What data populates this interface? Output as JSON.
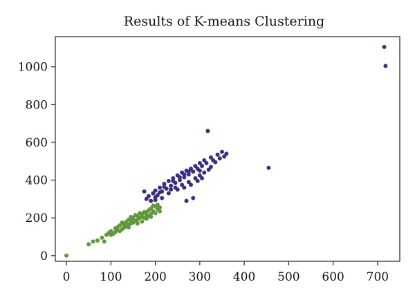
{
  "chart_data": {
    "type": "scatter",
    "title": "Results of K-means Clustering",
    "xlabel": "",
    "ylabel": "",
    "xlim": [
      -25,
      750
    ],
    "ylim": [
      -30,
      1160
    ],
    "xticks": [
      0,
      100,
      200,
      300,
      400,
      500,
      600,
      700
    ],
    "yticks": [
      0,
      200,
      400,
      600,
      800,
      1000
    ],
    "grid": false,
    "colors": {
      "cluster_1": "#3a2d85",
      "cluster_2": "#5f9a38"
    },
    "series": [
      {
        "color_key": "cluster_1",
        "points": [
          [
            715,
            1105
          ],
          [
            718,
            1005
          ],
          [
            318,
            660
          ],
          [
            455,
            465
          ],
          [
            360,
            540
          ],
          [
            350,
            550
          ],
          [
            340,
            535
          ],
          [
            325,
            520
          ],
          [
            310,
            505
          ],
          [
            300,
            490
          ],
          [
            290,
            475
          ],
          [
            280,
            460
          ],
          [
            270,
            450
          ],
          [
            260,
            440
          ],
          [
            250,
            425
          ],
          [
            240,
            410
          ],
          [
            230,
            395
          ],
          [
            220,
            380
          ],
          [
            210,
            360
          ],
          [
            200,
            345
          ],
          [
            195,
            330
          ],
          [
            185,
            315
          ],
          [
            180,
            300
          ],
          [
            190,
            290
          ],
          [
            270,
            290
          ],
          [
            285,
            305
          ],
          [
            175,
            340
          ],
          [
            205,
            320
          ],
          [
            215,
            340
          ],
          [
            225,
            355
          ],
          [
            235,
            370
          ],
          [
            245,
            385
          ],
          [
            255,
            400
          ],
          [
            265,
            415
          ],
          [
            275,
            430
          ],
          [
            285,
            445
          ],
          [
            295,
            460
          ],
          [
            305,
            475
          ],
          [
            315,
            490
          ],
          [
            330,
            505
          ],
          [
            345,
            515
          ],
          [
            355,
            525
          ],
          [
            245,
            360
          ],
          [
            260,
            375
          ],
          [
            275,
            390
          ],
          [
            290,
            410
          ],
          [
            300,
            425
          ],
          [
            310,
            440
          ],
          [
            320,
            455
          ],
          [
            230,
            330
          ],
          [
            215,
            305
          ],
          [
            200,
            295
          ],
          [
            250,
            350
          ],
          [
            265,
            360
          ],
          [
            280,
            375
          ],
          [
            295,
            395
          ],
          [
            305,
            410
          ],
          [
            220,
            365
          ],
          [
            240,
            395
          ],
          [
            255,
            415
          ],
          [
            265,
            430
          ],
          [
            275,
            445
          ],
          [
            210,
            335
          ],
          [
            235,
            350
          ],
          [
            325,
            470
          ],
          [
            335,
            495
          ],
          [
            300,
            450
          ],
          [
            200,
            310
          ]
        ]
      },
      {
        "color_key": "cluster_2",
        "points": [
          [
            0,
            0
          ],
          [
            50,
            60
          ],
          [
            60,
            75
          ],
          [
            70,
            80
          ],
          [
            80,
            95
          ],
          [
            85,
            75
          ],
          [
            90,
            110
          ],
          [
            95,
            120
          ],
          [
            100,
            130
          ],
          [
            105,
            115
          ],
          [
            110,
            145
          ],
          [
            115,
            150
          ],
          [
            120,
            160
          ],
          [
            125,
            140
          ],
          [
            130,
            170
          ],
          [
            135,
            180
          ],
          [
            140,
            165
          ],
          [
            145,
            190
          ],
          [
            150,
            200
          ],
          [
            155,
            185
          ],
          [
            160,
            210
          ],
          [
            165,
            200
          ],
          [
            170,
            220
          ],
          [
            175,
            230
          ],
          [
            180,
            215
          ],
          [
            185,
            240
          ],
          [
            190,
            250
          ],
          [
            195,
            235
          ],
          [
            200,
            260
          ],
          [
            205,
            245
          ],
          [
            210,
            255
          ],
          [
            120,
            130
          ],
          [
            130,
            150
          ],
          [
            140,
            190
          ],
          [
            150,
            175
          ],
          [
            160,
            190
          ],
          [
            170,
            205
          ],
          [
            180,
            230
          ],
          [
            190,
            220
          ],
          [
            100,
            110
          ],
          [
            110,
            125
          ],
          [
            125,
            175
          ],
          [
            135,
            155
          ],
          [
            145,
            170
          ],
          [
            155,
            215
          ],
          [
            165,
            225
          ],
          [
            175,
            200
          ],
          [
            185,
            210
          ],
          [
            195,
            265
          ],
          [
            200,
            225
          ],
          [
            210,
            235
          ],
          [
            115,
            135
          ],
          [
            140,
            150
          ],
          [
            160,
            170
          ],
          [
            180,
            195
          ],
          [
            130,
            160
          ],
          [
            150,
            195
          ],
          [
            170,
            180
          ],
          [
            190,
            205
          ],
          [
            205,
            270
          ],
          [
            145,
            205
          ]
        ]
      }
    ]
  }
}
